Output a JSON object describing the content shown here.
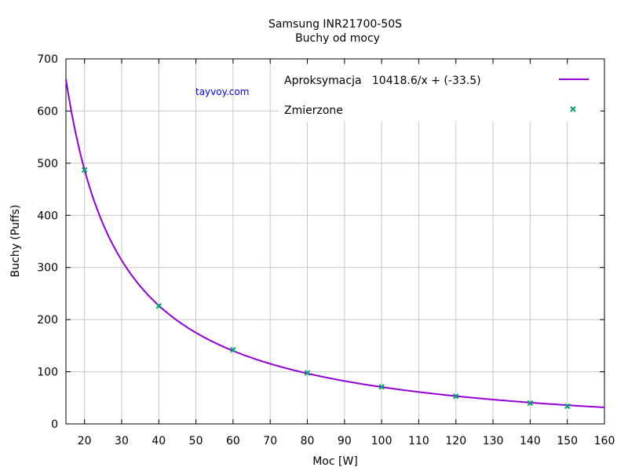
{
  "chart_data": {
    "type": "line",
    "title": "Samsung INR21700-50S",
    "subtitle": "Buchy od mocy",
    "xlabel": "Moc [W]",
    "ylabel": "Buchy (Puffs)",
    "xlim": [
      15,
      160
    ],
    "ylim": [
      0,
      700
    ],
    "xticks": [
      20,
      30,
      40,
      50,
      60,
      70,
      80,
      90,
      100,
      110,
      120,
      130,
      140,
      150,
      160
    ],
    "yticks": [
      0,
      100,
      200,
      300,
      400,
      500,
      600,
      700
    ],
    "grid": true,
    "legend_position": "top-right",
    "watermark": "tayvoy.com",
    "series": [
      {
        "name": "Aproksymacja   10418.6/x + (-33.5)",
        "kind": "line",
        "color": "#9400d3",
        "function": {
          "a": 10418.6,
          "b": -33.5
        }
      },
      {
        "name": "Zmierzone",
        "kind": "scatter",
        "color": "#009e73",
        "marker": "x",
        "x": [
          20,
          40,
          60,
          80,
          100,
          120,
          140,
          150
        ],
        "y": [
          487,
          226,
          142,
          98,
          71,
          53,
          40,
          34
        ]
      }
    ]
  }
}
